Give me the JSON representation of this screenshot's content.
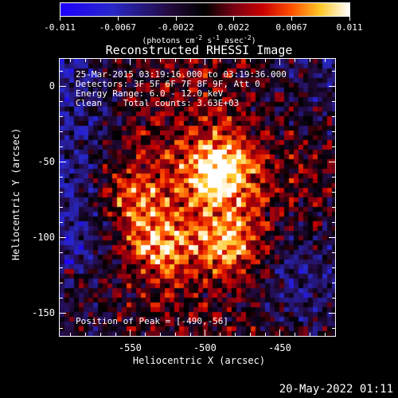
{
  "colorbar": {
    "tick_labels": [
      "-0.011",
      "-0.0067",
      "-0.0022",
      "0.0022",
      "0.0067",
      "0.011"
    ],
    "units_label_parts": [
      "(photons cm",
      "-2",
      " s",
      "-1",
      " asec",
      "-2",
      ")"
    ]
  },
  "title": "Reconstructed RHESSI Image",
  "info": {
    "line1": "25-Mar-2015 03:19:16.000 to 03:19:36.000",
    "line2": "Detectors: 3F 5F 6F 7F 8F 9F, Att 0",
    "line3": "Energy Range: 6.0 - 12.0 keV",
    "line4": "Clean    Total counts: 3.63E+03"
  },
  "peak_text": "Position of Peak = [-490,-56]",
  "footer_date": "20-May-2022 01:11",
  "colors": {
    "background": "#000000",
    "foreground": "#ffffff"
  },
  "chart_data": {
    "type": "heatmap",
    "title": "Reconstructed RHESSI Image",
    "xlabel": "Heliocentric X (arcsec)",
    "ylabel": "Heliocentric Y (arcsec)",
    "xlim": [
      -597,
      -413
    ],
    "ylim": [
      -165,
      18
    ],
    "x_ticks": [
      -550,
      -500,
      -450
    ],
    "x_tick_labels": [
      "-550",
      "-500",
      "-450"
    ],
    "y_ticks": [
      0,
      -50,
      -100,
      -150
    ],
    "y_tick_labels": [
      "0",
      "-50",
      "-100",
      "-150"
    ],
    "color_range": [
      -0.011,
      0.011
    ],
    "colormap": "RHESSI std (purple-blue-black-red-yellow-white)",
    "peak_position": [
      -490,
      -56
    ],
    "sources": [
      {
        "x": -490,
        "y": -56,
        "intensity": 0.011
      },
      {
        "x": -530,
        "y": -105,
        "intensity": 0.0075
      },
      {
        "x": -485,
        "y": -103,
        "intensity": 0.0072
      },
      {
        "x": -548,
        "y": -72,
        "intensity": 0.0055
      }
    ]
  }
}
